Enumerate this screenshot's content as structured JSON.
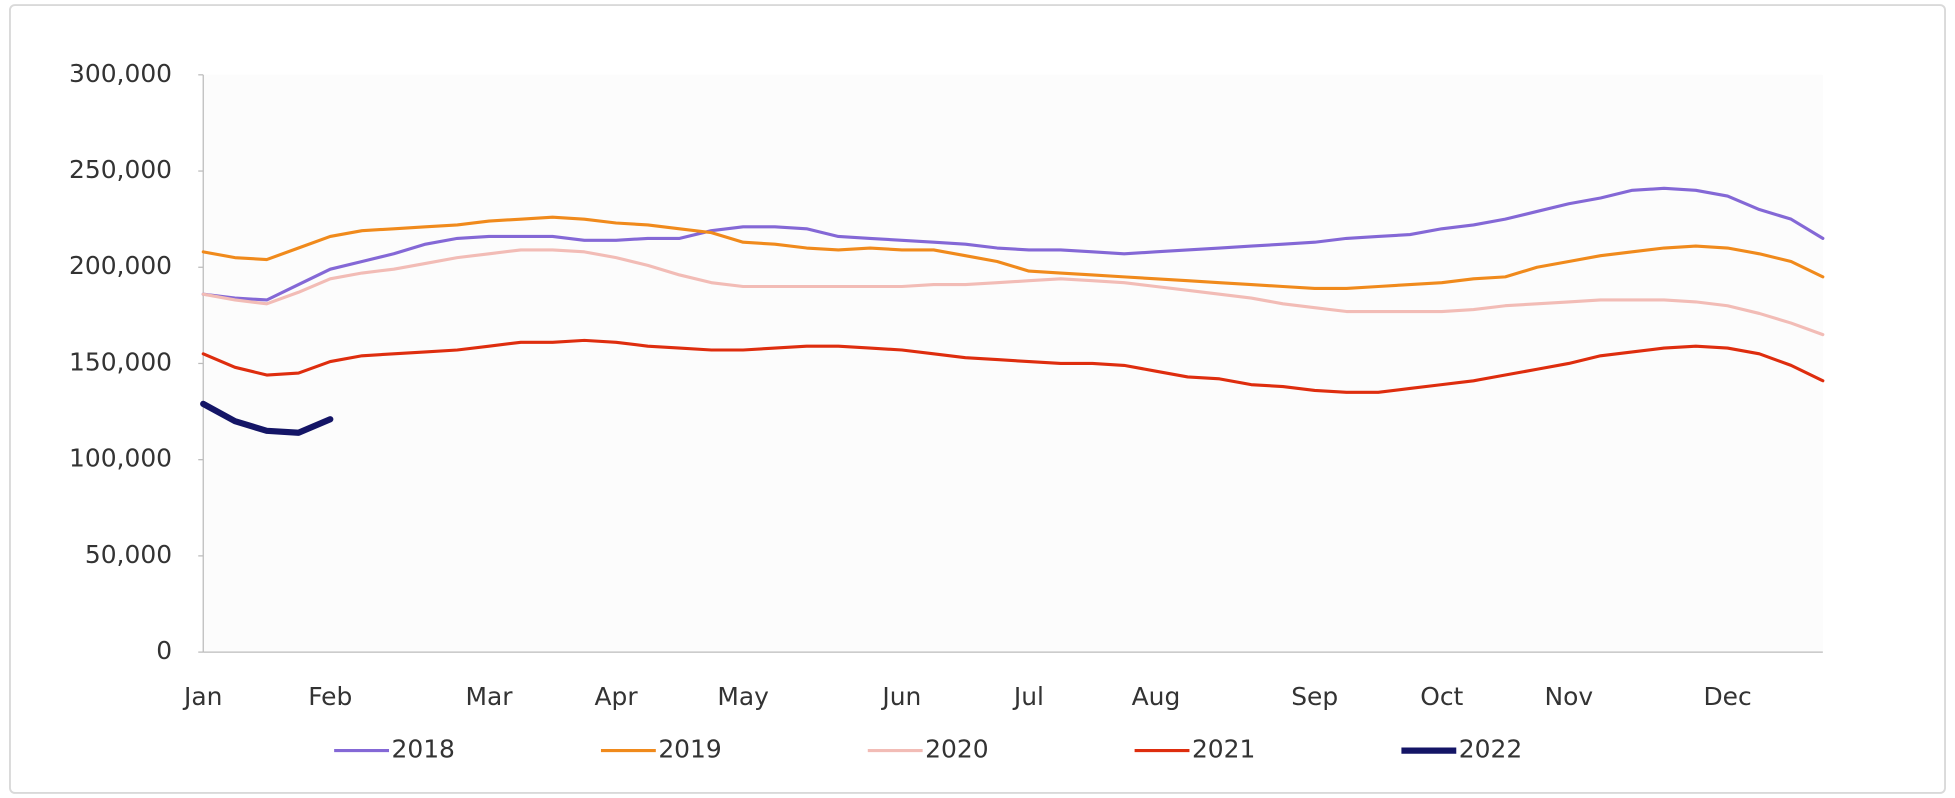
{
  "chart_data": {
    "type": "line",
    "categories": [
      "Jan",
      null,
      null,
      null,
      "Feb",
      null,
      null,
      null,
      null,
      "Mar",
      null,
      null,
      null,
      "Apr",
      null,
      null,
      null,
      "May",
      null,
      null,
      null,
      null,
      "Jun",
      null,
      null,
      null,
      "Jul",
      null,
      null,
      null,
      "Aug",
      null,
      null,
      null,
      null,
      "Sep",
      null,
      null,
      null,
      "Oct",
      null,
      null,
      null,
      "Nov",
      null,
      null,
      null,
      null,
      "Dec",
      null,
      null,
      null
    ],
    "series": [
      {
        "name": "2018",
        "color": "#8468d6",
        "values": [
          186000,
          184000,
          183000,
          191000,
          199000,
          203000,
          207000,
          212000,
          215000,
          216000,
          216000,
          216000,
          214000,
          214000,
          215000,
          215000,
          219000,
          221000,
          221000,
          220000,
          216000,
          215000,
          214000,
          213000,
          212000,
          210000,
          209000,
          209000,
          208000,
          207000,
          208000,
          209000,
          210000,
          211000,
          212000,
          213000,
          215000,
          216000,
          217000,
          220000,
          222000,
          225000,
          229000,
          233000,
          236000,
          240000,
          241000,
          240000,
          237000,
          230000,
          225000,
          215000
        ]
      },
      {
        "name": "2019",
        "color": "#f08a1c",
        "values": [
          208000,
          205000,
          204000,
          210000,
          216000,
          219000,
          220000,
          221000,
          222000,
          224000,
          225000,
          226000,
          225000,
          223000,
          222000,
          220000,
          218000,
          213000,
          212000,
          210000,
          209000,
          210000,
          209000,
          209000,
          206000,
          203000,
          198000,
          197000,
          196000,
          195000,
          194000,
          193000,
          192000,
          191000,
          190000,
          189000,
          189000,
          190000,
          191000,
          192000,
          194000,
          195000,
          200000,
          203000,
          206000,
          208000,
          210000,
          211000,
          210000,
          207000,
          203000,
          195000
        ]
      },
      {
        "name": "2020",
        "color": "#f2bcb6",
        "values": [
          186000,
          183000,
          181000,
          187000,
          194000,
          197000,
          199000,
          202000,
          205000,
          207000,
          209000,
          209000,
          208000,
          205000,
          201000,
          196000,
          192000,
          190000,
          190000,
          190000,
          190000,
          190000,
          190000,
          191000,
          191000,
          192000,
          193000,
          194000,
          193000,
          192000,
          190000,
          188000,
          186000,
          184000,
          181000,
          179000,
          177000,
          177000,
          177000,
          177000,
          178000,
          180000,
          181000,
          182000,
          183000,
          183000,
          183000,
          182000,
          180000,
          176000,
          171000,
          165000
        ]
      },
      {
        "name": "2021",
        "color": "#de2d0e",
        "values": [
          155000,
          148000,
          144000,
          145000,
          151000,
          154000,
          155000,
          156000,
          157000,
          159000,
          161000,
          161000,
          162000,
          161000,
          159000,
          158000,
          157000,
          157000,
          158000,
          159000,
          159000,
          158000,
          157000,
          155000,
          153000,
          152000,
          151000,
          150000,
          150000,
          149000,
          146000,
          143000,
          142000,
          139000,
          138000,
          136000,
          135000,
          135000,
          137000,
          139000,
          141000,
          144000,
          147000,
          150000,
          154000,
          156000,
          158000,
          159000,
          158000,
          155000,
          149000,
          141000
        ]
      },
      {
        "name": "2022",
        "color": "#141566",
        "values": [
          129000,
          120000,
          115000,
          114000,
          121000,
          null,
          null,
          null,
          null,
          null,
          null,
          null,
          null,
          null,
          null,
          null,
          null,
          null,
          null,
          null,
          null,
          null,
          null,
          null,
          null,
          null,
          null,
          null,
          null,
          null,
          null,
          null,
          null,
          null,
          null,
          null,
          null,
          null,
          null,
          null,
          null,
          null,
          null,
          null,
          null,
          null,
          null,
          null,
          null,
          null,
          null,
          null
        ]
      }
    ],
    "ylim": [
      0,
      300000
    ],
    "yticks": [
      0,
      {
        "value": 50000,
        "label": "50,000"
      },
      {
        "value": 100000,
        "label": "100,000"
      },
      {
        "value": 150000,
        "label": "150,000"
      },
      {
        "value": 200000,
        "label": "200,000"
      },
      {
        "value": 250000,
        "label": "250,000"
      },
      {
        "value": 300000,
        "label": "300,000"
      }
    ],
    "grid": false,
    "legend": "bottom"
  }
}
